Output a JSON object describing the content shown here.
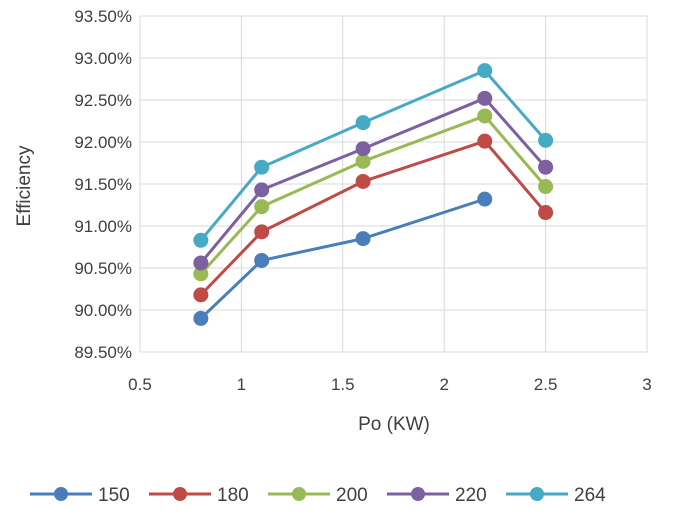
{
  "chart_data": {
    "type": "line",
    "title": "",
    "xlabel": "Po (KW)",
    "ylabel": "Efficiency",
    "xlim": [
      0.5,
      3
    ],
    "ylim": [
      0.895,
      0.935
    ],
    "x_ticks": [
      "0.5",
      "1",
      "1.5",
      "2",
      "2.5",
      "3"
    ],
    "y_ticks": [
      "89.50%",
      "90.00%",
      "90.50%",
      "91.00%",
      "91.50%",
      "92.00%",
      "92.50%",
      "93.00%",
      "93.50%"
    ],
    "grid": "vertical and horizontal",
    "legend_position": "bottom",
    "series": [
      {
        "name": "150",
        "color": "#4a7ebb",
        "points": [
          [
            0.8,
            0.899
          ],
          [
            1.1,
            0.9059
          ],
          [
            1.6,
            0.9085
          ],
          [
            2.2,
            0.9132
          ]
        ]
      },
      {
        "name": "180",
        "color": "#be4b48",
        "points": [
          [
            0.8,
            0.9018
          ],
          [
            1.1,
            0.9093
          ],
          [
            1.6,
            0.9153
          ],
          [
            2.2,
            0.9201
          ],
          [
            2.5,
            0.9116
          ]
        ]
      },
      {
        "name": "200",
        "color": "#98b954",
        "points": [
          [
            0.8,
            0.9043
          ],
          [
            1.1,
            0.9123
          ],
          [
            1.6,
            0.9177
          ],
          [
            2.2,
            0.9231
          ],
          [
            2.5,
            0.9147
          ]
        ]
      },
      {
        "name": "220",
        "color": "#7d60a0",
        "points": [
          [
            0.8,
            0.9056
          ],
          [
            1.1,
            0.9143
          ],
          [
            1.6,
            0.9192
          ],
          [
            2.2,
            0.9252
          ],
          [
            2.5,
            0.917
          ]
        ]
      },
      {
        "name": "264",
        "color": "#46aac5",
        "points": [
          [
            0.8,
            0.9083
          ],
          [
            1.1,
            0.917
          ],
          [
            1.6,
            0.9223
          ],
          [
            2.2,
            0.9285
          ],
          [
            2.5,
            0.9202
          ]
        ]
      }
    ]
  }
}
